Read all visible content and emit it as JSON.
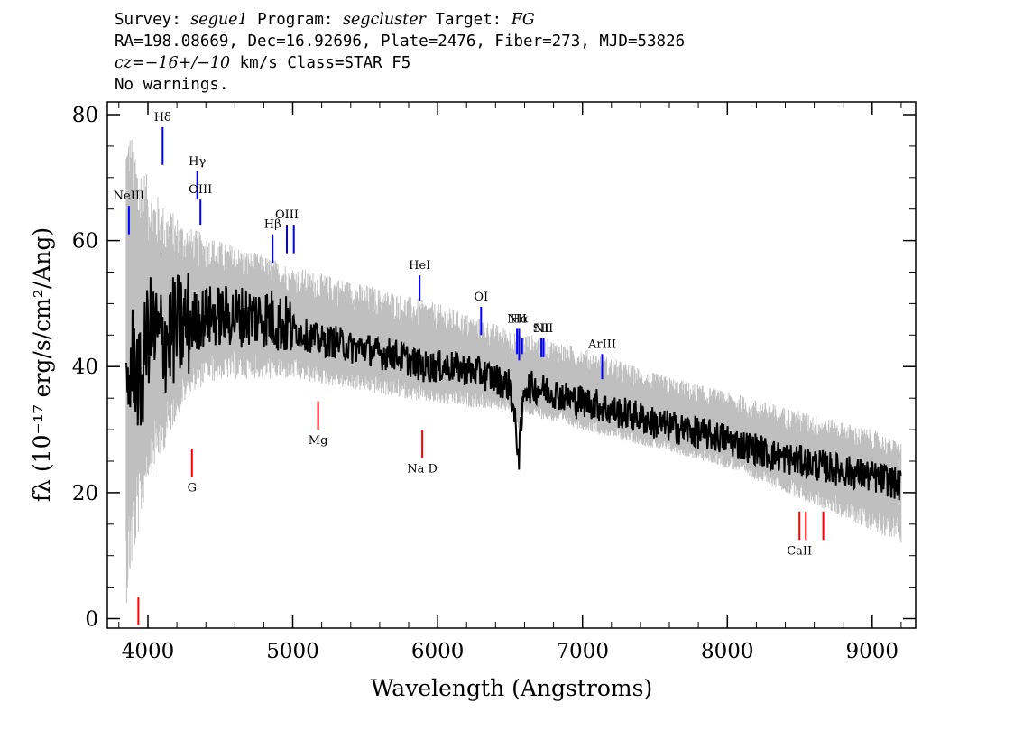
{
  "header": {
    "line1": {
      "survey_label": "Survey: ",
      "survey": "segue1",
      "program_label": " Program: ",
      "program": "segcluster",
      "target_label": " Target: ",
      "target": "FG"
    },
    "line2": "RA=198.08669, Dec=16.92696, Plate=2476, Fiber=273, MJD=53826",
    "line3": {
      "cz": "cz=−16+/−10",
      "rest": " km/s Class=STAR F5"
    },
    "line4": "No warnings."
  },
  "chart_data": {
    "type": "line",
    "xlabel": "Wavelength (Angstroms)",
    "ylabel": "fλ (10⁻¹⁷ erg/s/cm²/Ang)",
    "xlim": [
      3720,
      9300
    ],
    "ylim": [
      -1.5,
      82
    ],
    "xticks": [
      4000,
      5000,
      6000,
      7000,
      8000,
      9000
    ],
    "yticks": [
      0,
      20,
      40,
      60,
      80
    ],
    "grid": false,
    "colors": {
      "flux": "#000000",
      "error": "#bfbfbf",
      "emission": "#0000ff",
      "absorption": "#ff0000"
    },
    "series": [
      {
        "role": "flux",
        "x": [
          3850,
          3900,
          3950,
          4000,
          4100,
          4200,
          4300,
          4400,
          4500,
          4600,
          4700,
          4800,
          4900,
          5000,
          5100,
          5200,
          5300,
          5400,
          5500,
          5600,
          5700,
          5800,
          5900,
          6000,
          6100,
          6200,
          6300,
          6400,
          6500,
          6562,
          6600,
          6700,
          6800,
          6900,
          7000,
          7100,
          7200,
          7300,
          7400,
          7500,
          7600,
          7700,
          7800,
          7900,
          8000,
          8100,
          8200,
          8300,
          8400,
          8500,
          8600,
          8700,
          8800,
          8900,
          9000,
          9100,
          9200
        ],
        "y": [
          35,
          42,
          36,
          46,
          44,
          46,
          47,
          48,
          48,
          48,
          48,
          48,
          47,
          46,
          45,
          44,
          44,
          43,
          43,
          42,
          42,
          41,
          40,
          40,
          40,
          39.5,
          39,
          38,
          37,
          26,
          37,
          36.5,
          36,
          35,
          34.5,
          34,
          33,
          32.5,
          32,
          31,
          30.5,
          30,
          29.5,
          29,
          28.5,
          27.5,
          27,
          26,
          25.5,
          25,
          24.5,
          24,
          23.5,
          23,
          22.5,
          22,
          21
        ]
      },
      {
        "role": "error-envelope",
        "x": [
          3850,
          4000,
          4100,
          4200,
          4300,
          4500,
          5000,
          5500,
          6000,
          6500,
          7000,
          7500,
          8000,
          8500,
          9000,
          9200
        ],
        "y_upper": [
          80,
          70,
          66,
          64,
          62,
          60,
          56,
          53,
          50,
          46,
          43,
          39,
          36,
          33,
          30,
          28
        ],
        "y_lower": [
          2,
          22,
          26,
          32,
          36,
          38,
          38,
          36,
          34,
          33,
          30,
          27,
          24,
          19,
          14,
          12
        ]
      }
    ],
    "lines": [
      {
        "label": "NeIII",
        "x": 3869,
        "kind": "emission",
        "y_range": [
          61,
          65.5
        ]
      },
      {
        "label": "Hδ",
        "x": 4102,
        "kind": "emission",
        "y_range": [
          72,
          78
        ]
      },
      {
        "label": "Hγ",
        "x": 4341,
        "kind": "emission",
        "y_range": [
          66.5,
          71
        ]
      },
      {
        "label": "OIII",
        "x": 4363,
        "kind": "emission",
        "y_range": [
          62.5,
          66.5
        ]
      },
      {
        "label": "Hβ",
        "x": 4861,
        "kind": "emission",
        "y_range": [
          56.5,
          61
        ]
      },
      {
        "label": "OIII",
        "x": 4959,
        "kind": "emission",
        "y_range": [
          58,
          62.5
        ]
      },
      {
        "label": "",
        "x": 5007,
        "kind": "emission",
        "y_range": [
          58,
          62.5
        ]
      },
      {
        "label": "HeI",
        "x": 5876,
        "kind": "emission",
        "y_range": [
          50.5,
          54.5
        ]
      },
      {
        "label": "OI",
        "x": 6300,
        "kind": "emission",
        "y_range": [
          45,
          49.5
        ]
      },
      {
        "label": "NII",
        "x": 6548,
        "kind": "emission",
        "y_range": [
          42,
          46
        ]
      },
      {
        "label": "Hα",
        "x": 6563,
        "kind": "emission",
        "y_range": [
          41,
          46
        ]
      },
      {
        "label": "",
        "x": 6583,
        "kind": "emission",
        "y_range": [
          42,
          44.5
        ]
      },
      {
        "label": "SII",
        "x": 6716,
        "kind": "emission",
        "y_range": [
          41.5,
          44.5
        ]
      },
      {
        "label": "NII",
        "x": 6731,
        "kind": "emission",
        "y_range": [
          41.5,
          44.5
        ]
      },
      {
        "label": "ArIII",
        "x": 7136,
        "kind": "emission",
        "y_range": [
          38,
          42
        ]
      },
      {
        "label": "",
        "x": 3934,
        "kind": "absorption",
        "y_range": [
          -1,
          3.5
        ]
      },
      {
        "label": "G",
        "x": 4304,
        "kind": "absorption",
        "y_range": [
          22.5,
          27
        ]
      },
      {
        "label": "Mg",
        "x": 5175,
        "kind": "absorption",
        "y_range": [
          30,
          34.5
        ]
      },
      {
        "label": "Na D",
        "x": 5894,
        "kind": "absorption",
        "y_range": [
          25.5,
          30
        ]
      },
      {
        "label": "CaII",
        "x": 8498,
        "kind": "absorption",
        "y_range": [
          12.5,
          17
        ]
      },
      {
        "label": "",
        "x": 8542,
        "kind": "absorption",
        "y_range": [
          12.5,
          17
        ]
      },
      {
        "label": "",
        "x": 8662,
        "kind": "absorption",
        "y_range": [
          12.5,
          17
        ]
      }
    ]
  }
}
